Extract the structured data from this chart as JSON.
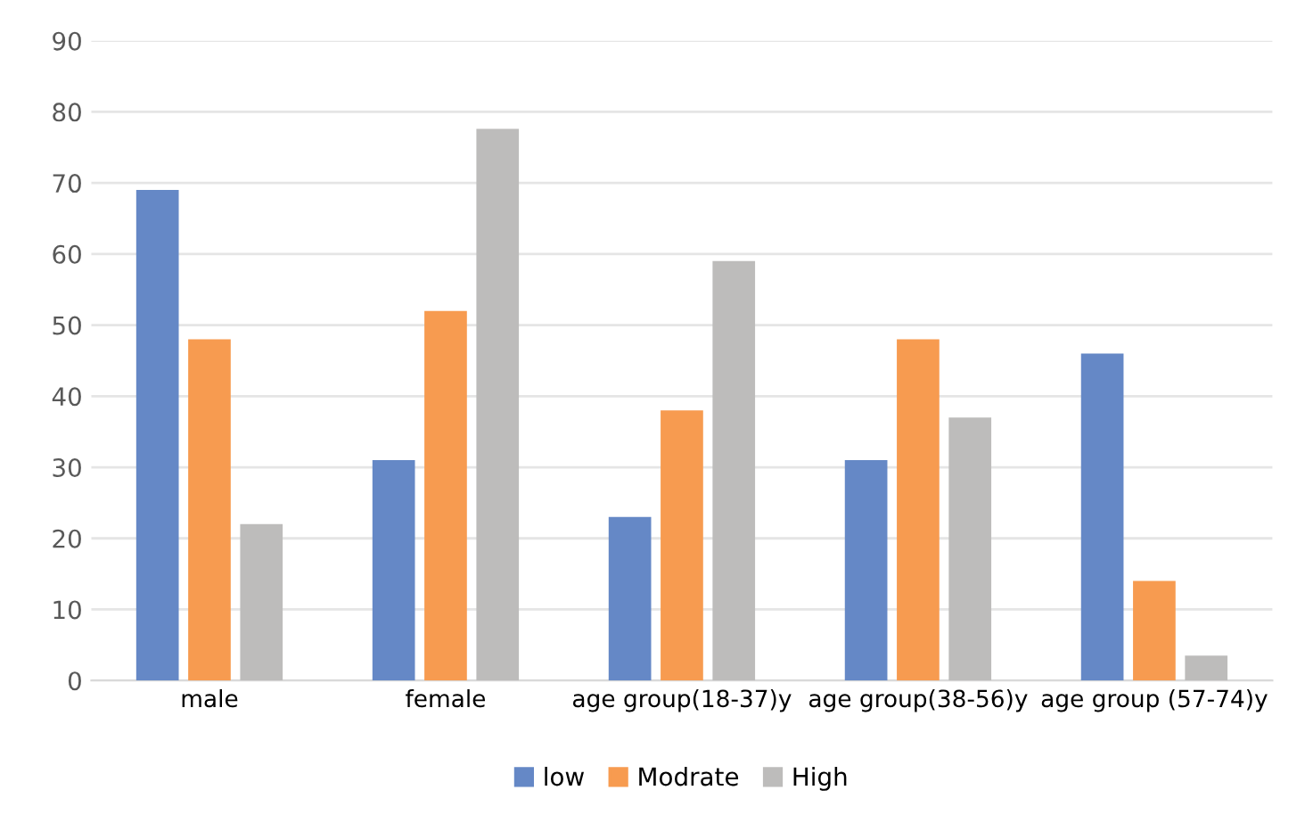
{
  "chart_data": {
    "type": "bar",
    "categories": [
      "male",
      "female",
      "age group(18-37)y",
      "age group(38-56)y",
      "age group (57-74)y"
    ],
    "series": [
      {
        "name": "low",
        "color": "#6588c6",
        "values": [
          69,
          31,
          23,
          31,
          46
        ]
      },
      {
        "name": "Modrate",
        "color": "#f79b50",
        "values": [
          48,
          52,
          38,
          48,
          14
        ]
      },
      {
        "name": "High",
        "color": "#bdbcbb",
        "values": [
          22,
          77.6,
          59,
          37,
          3.5
        ]
      }
    ],
    "ylim": [
      0,
      90
    ],
    "yticks": [
      0,
      10,
      20,
      30,
      40,
      50,
      60,
      70,
      80,
      90
    ],
    "grid": "y",
    "legend": "bottom"
  }
}
